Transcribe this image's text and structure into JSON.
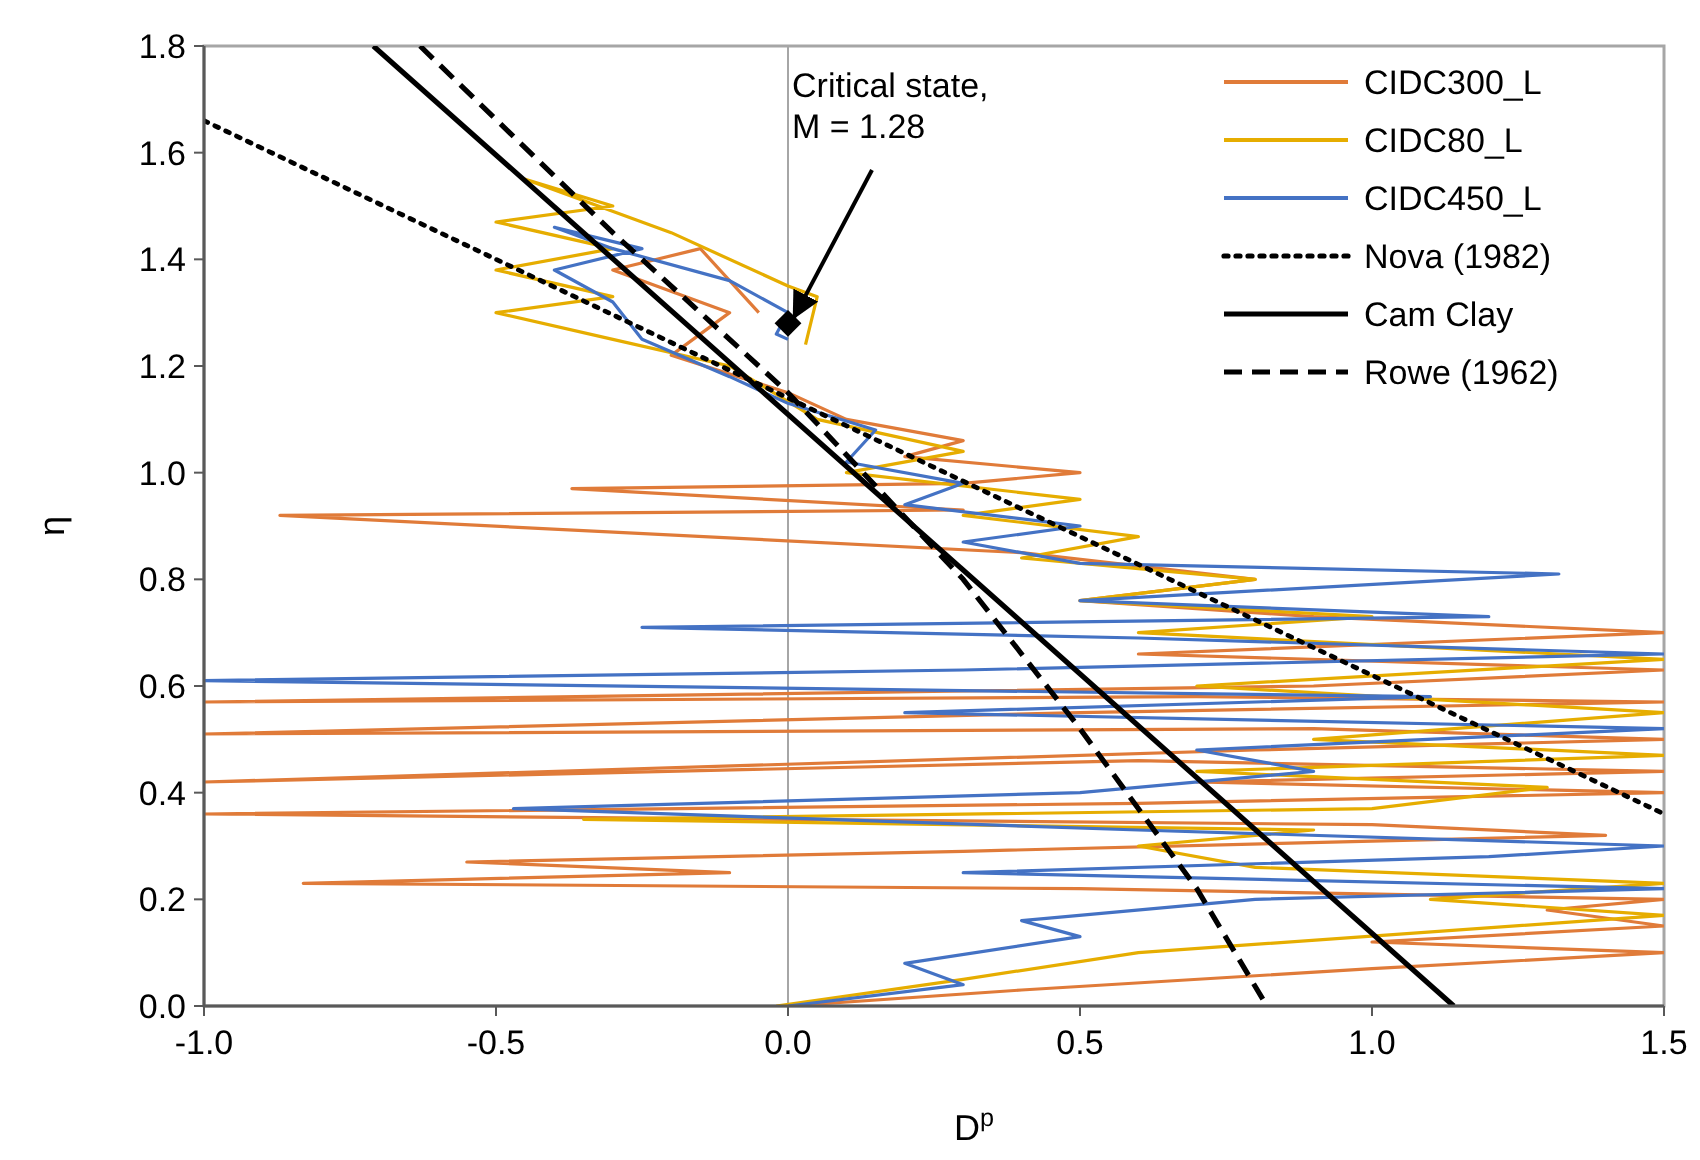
{
  "chart_data": {
    "type": "line",
    "xlabel": "D$^{p}$",
    "ylabel": "η",
    "xlim": [
      -1.0,
      1.5
    ],
    "ylim": [
      0.0,
      1.8
    ],
    "xticks": [
      {
        "value": -1.0,
        "label": "-1.0"
      },
      {
        "value": -0.5,
        "label": "-0.5"
      },
      {
        "value": 0.0,
        "label": "0.0"
      },
      {
        "value": 0.5,
        "label": "0.5"
      },
      {
        "value": 1.0,
        "label": "1.0"
      },
      {
        "value": 1.5,
        "label": "1.5"
      }
    ],
    "yticks": [
      {
        "value": 0.0,
        "label": "0.0"
      },
      {
        "value": 0.2,
        "label": "0.2"
      },
      {
        "value": 0.4,
        "label": "0.4"
      },
      {
        "value": 0.6,
        "label": "0.6"
      },
      {
        "value": 0.8,
        "label": "0.8"
      },
      {
        "value": 1.0,
        "label": "1.0"
      },
      {
        "value": 1.2,
        "label": "1.2"
      },
      {
        "value": 1.4,
        "label": "1.4"
      },
      {
        "value": 1.6,
        "label": "1.6"
      },
      {
        "value": 1.8,
        "label": "1.8"
      }
    ],
    "grid": false,
    "legend": "top right",
    "marker": "none",
    "ref_lines": [
      {
        "axis": "x",
        "value": 0,
        "color": "#a6a6a6"
      }
    ],
    "annotations": [
      {
        "text": "Critical state,\nM = 1.28",
        "x": 0,
        "y": 1.28
      }
    ],
    "series": [
      {
        "name": "CIDC300_L",
        "color": "#e07b39",
        "line_style": "solid",
        "x": [
          0,
          0.4,
          1.0,
          1.5,
          1.0,
          1.5,
          1.3,
          1.5,
          0.5,
          -0.83,
          -0.1,
          -0.55,
          0.3,
          1.4,
          1.0,
          -1.0,
          0.6,
          1.5,
          0.7,
          1.5,
          0.6,
          -1.0,
          0.8,
          1.5,
          0.9,
          -1.0,
          0.5,
          1.5,
          0.7,
          -1.0,
          0.9,
          1.5,
          0.6,
          1.5,
          0.9,
          0.5,
          0.8,
          0.4,
          -0.87,
          0.3,
          -0.37,
          0.3,
          0.5,
          0.2,
          0.3,
          0.1,
          0.0,
          -0.2,
          -0.1,
          -0.3,
          -0.15,
          -0.05
        ],
        "values": [
          0,
          0.03,
          0.07,
          0.1,
          0.12,
          0.15,
          0.18,
          0.2,
          0.22,
          0.23,
          0.25,
          0.27,
          0.29,
          0.32,
          0.34,
          0.36,
          0.38,
          0.4,
          0.42,
          0.44,
          0.46,
          0.42,
          0.48,
          0.5,
          0.52,
          0.51,
          0.55,
          0.57,
          0.58,
          0.57,
          0.6,
          0.63,
          0.66,
          0.7,
          0.73,
          0.76,
          0.8,
          0.85,
          0.92,
          0.93,
          0.97,
          0.98,
          1.0,
          1.03,
          1.06,
          1.1,
          1.15,
          1.22,
          1.3,
          1.38,
          1.42,
          1.3
        ]
      },
      {
        "name": "CIDC80_L",
        "color": "#e6ad00",
        "line_style": "solid",
        "x": [
          -0.02,
          0.3,
          0.6,
          1.5,
          1.1,
          1.5,
          0.8,
          0.6,
          0.9,
          -0.35,
          1.0,
          1.3,
          0.7,
          1.5,
          0.9,
          1.5,
          0.7,
          1.5,
          0.6,
          1.0,
          0.5,
          0.8,
          0.4,
          0.6,
          0.3,
          0.5,
          0.1,
          0.3,
          0.05,
          -0.1,
          -0.3,
          -0.5,
          -0.3,
          -0.5,
          -0.3,
          -0.5,
          -0.3,
          -0.45,
          -0.2,
          0.0,
          0.05,
          0.03
        ],
        "values": [
          0,
          0.05,
          0.1,
          0.17,
          0.2,
          0.23,
          0.26,
          0.3,
          0.33,
          0.35,
          0.37,
          0.41,
          0.44,
          0.47,
          0.5,
          0.55,
          0.6,
          0.65,
          0.7,
          0.73,
          0.76,
          0.8,
          0.84,
          0.88,
          0.92,
          0.95,
          1.0,
          1.04,
          1.1,
          1.2,
          1.25,
          1.3,
          1.33,
          1.38,
          1.42,
          1.47,
          1.5,
          1.55,
          1.45,
          1.35,
          1.33,
          1.24
        ]
      },
      {
        "name": "CIDC450_L",
        "color": "#4472c4",
        "line_style": "solid",
        "x": [
          0,
          0.3,
          0.2,
          0.5,
          0.4,
          0.8,
          1.5,
          0.3,
          1.2,
          1.5,
          0.6,
          -0.47,
          0.5,
          0.9,
          0.7,
          1.5,
          0.2,
          1.1,
          -1.0,
          0.3,
          1.5,
          0.6,
          -0.25,
          1.2,
          0.5,
          1.32,
          0.5,
          0.3,
          0.5,
          0.2,
          0.3,
          0.1,
          0.15,
          0.0,
          -0.1,
          -0.25,
          -0.3,
          -0.4,
          -0.25,
          -0.4,
          -0.3,
          -0.1,
          0.0,
          -0.02,
          0.0
        ],
        "values": [
          0,
          0.04,
          0.08,
          0.13,
          0.16,
          0.2,
          0.22,
          0.25,
          0.28,
          0.3,
          0.33,
          0.37,
          0.4,
          0.44,
          0.48,
          0.52,
          0.55,
          0.58,
          0.61,
          0.63,
          0.66,
          0.69,
          0.71,
          0.73,
          0.76,
          0.81,
          0.83,
          0.87,
          0.9,
          0.94,
          0.98,
          1.02,
          1.08,
          1.13,
          1.18,
          1.25,
          1.32,
          1.38,
          1.42,
          1.46,
          1.42,
          1.36,
          1.3,
          1.26,
          1.25
        ]
      },
      {
        "name": "Nova (1982)",
        "color": "#000000",
        "line_style": "dotted",
        "x": [
          -1.0,
          1.5
        ],
        "values": [
          1.66,
          0.36
        ]
      },
      {
        "name": "Cam Clay",
        "color": "#000000",
        "line_style": "solid",
        "x": [
          -0.71,
          1.14
        ],
        "values": [
          1.8,
          0
        ]
      },
      {
        "name": "Rowe (1962)",
        "color": "#000000",
        "line_style": "dashed",
        "x": [
          -0.63,
          -0.3,
          0,
          0.3,
          0.5,
          0.7,
          0.82
        ],
        "values": [
          1.8,
          1.45,
          1.15,
          0.8,
          0.52,
          0.22,
          0
        ]
      },
      {
        "type": "scatter",
        "color": "#000000",
        "marker": "diamond",
        "x": [
          0
        ],
        "values": [
          1.28
        ]
      }
    ]
  }
}
